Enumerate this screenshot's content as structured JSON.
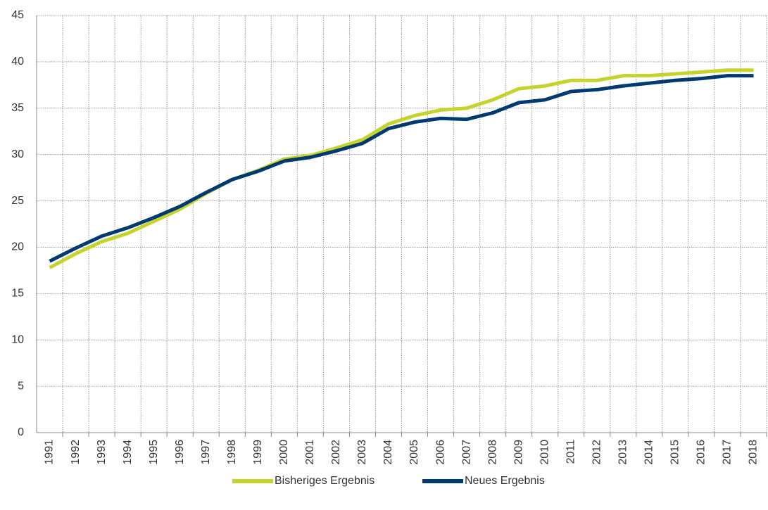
{
  "chart_data": {
    "type": "line",
    "categories": [
      "1991",
      "1992",
      "1993",
      "1994",
      "1995",
      "1996",
      "1997",
      "1998",
      "1999",
      "2000",
      "2001",
      "2002",
      "2003",
      "2004",
      "2005",
      "2006",
      "2007",
      "2008",
      "2009",
      "2010",
      "2011",
      "2012",
      "2013",
      "2014",
      "2015",
      "2016",
      "2017",
      "2018"
    ],
    "series": [
      {
        "name": "Bisheriges Ergebnis",
        "color": "#c5d42c",
        "values": [
          17.8,
          19.3,
          20.6,
          21.5,
          22.8,
          24.1,
          25.8,
          27.3,
          28.3,
          29.5,
          29.9,
          30.7,
          31.6,
          33.3,
          34.2,
          34.8,
          35.0,
          35.9,
          37.1,
          37.4,
          38.0,
          38.0,
          38.5,
          38.5,
          38.7,
          38.9,
          39.1,
          39.1
        ]
      },
      {
        "name": "Neues Ergebnis",
        "color": "#003a70",
        "values": [
          18.5,
          19.9,
          21.2,
          22.1,
          23.2,
          24.4,
          25.9,
          27.3,
          28.2,
          29.3,
          29.7,
          30.4,
          31.2,
          32.8,
          33.5,
          33.9,
          33.8,
          34.5,
          35.6,
          35.9,
          36.8,
          37.0,
          37.4,
          37.7,
          38.0,
          38.2,
          38.5,
          38.5
        ]
      }
    ],
    "ylim": [
      0,
      45
    ],
    "yticks": [
      0,
      5,
      10,
      15,
      20,
      25,
      30,
      35,
      40,
      45
    ],
    "grid": true,
    "legend": "bottom"
  }
}
